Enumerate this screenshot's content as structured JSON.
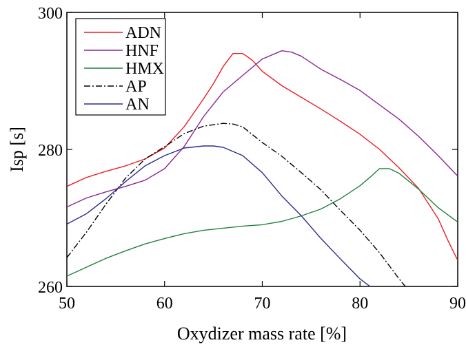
{
  "chart_data": {
    "type": "line",
    "title": "",
    "xlabel": "Oxydizer mass rate [%]",
    "ylabel": "Isp [s]",
    "xlim": [
      50,
      90
    ],
    "ylim": [
      260,
      300
    ],
    "xticks": [
      50,
      60,
      70,
      80,
      90
    ],
    "xtick_labels": [
      "50",
      "60",
      "70",
      "80",
      "90"
    ],
    "yticks": [
      260,
      280,
      300
    ],
    "ytick_labels": [
      "260",
      "280",
      "300"
    ],
    "grid": false,
    "legend_position": "top-left",
    "series": [
      {
        "name": "ADN",
        "color": "#ee1c24",
        "dash": "solid",
        "x": [
          50,
          52,
          54,
          56,
          58,
          60,
          62,
          64,
          65,
          66,
          67,
          68,
          69,
          70,
          72,
          74,
          76,
          78,
          80,
          82,
          84,
          86,
          88,
          89,
          90
        ],
        "y": [
          274.6,
          275.9,
          276.8,
          277.6,
          278.6,
          280.2,
          283.3,
          287.4,
          289.6,
          292.1,
          294.0,
          294.0,
          293.0,
          291.4,
          289.3,
          287.6,
          285.9,
          284.1,
          282.2,
          280.0,
          277.3,
          274.3,
          269.9,
          266.7,
          263.8
        ]
      },
      {
        "name": "HNF",
        "color": "#8b2595",
        "dash": "solid",
        "x": [
          50,
          52,
          54,
          56,
          58,
          60,
          62,
          64,
          66,
          68,
          70,
          72,
          73,
          74,
          76,
          78,
          80,
          82,
          84,
          86,
          88,
          90
        ],
        "y": [
          271.6,
          272.9,
          273.8,
          274.6,
          275.5,
          277.2,
          280.4,
          284.8,
          288.4,
          290.8,
          293.2,
          294.4,
          294.2,
          293.6,
          291.7,
          290.2,
          288.6,
          286.5,
          284.4,
          281.9,
          279.1,
          276.1
        ]
      },
      {
        "name": "HMX",
        "color": "#23803e",
        "dash": "solid",
        "x": [
          50,
          52,
          54,
          56,
          58,
          60,
          62,
          64,
          66,
          68,
          70,
          72,
          74,
          76,
          78,
          80,
          81,
          82,
          83,
          84,
          86,
          88,
          90
        ],
        "y": [
          261.5,
          262.8,
          264.1,
          265.2,
          266.2,
          267.0,
          267.7,
          268.2,
          268.5,
          268.8,
          269.0,
          269.5,
          270.3,
          271.3,
          272.8,
          274.7,
          275.9,
          277.2,
          277.2,
          276.5,
          274.2,
          271.5,
          269.4
        ]
      },
      {
        "name": "AP",
        "color": "#000000",
        "dash": "dashdot",
        "x": [
          50,
          52,
          54,
          56,
          58,
          60,
          62,
          64,
          66,
          67,
          68,
          70,
          72,
          74,
          76,
          78,
          80,
          82,
          83,
          84,
          84.8
        ],
        "y": [
          264.2,
          267.9,
          272.0,
          275.8,
          278.6,
          280.4,
          282.3,
          283.4,
          283.8,
          283.7,
          283.3,
          281.0,
          279.0,
          276.6,
          274.1,
          271.1,
          268.2,
          264.9,
          263.0,
          261.1,
          259.7
        ]
      },
      {
        "name": "AN",
        "color": "#2b2b8f",
        "dash": "solid",
        "x": [
          50,
          52,
          54,
          56,
          58,
          60,
          62,
          64,
          65,
          66,
          68,
          70,
          72,
          74,
          76,
          78,
          80,
          81.2
        ],
        "y": [
          269.1,
          270.6,
          272.8,
          275.3,
          277.6,
          279.1,
          280.2,
          280.5,
          280.5,
          280.3,
          279.1,
          276.6,
          273.2,
          270.3,
          267.0,
          264.0,
          261.1,
          259.8
        ]
      }
    ]
  }
}
